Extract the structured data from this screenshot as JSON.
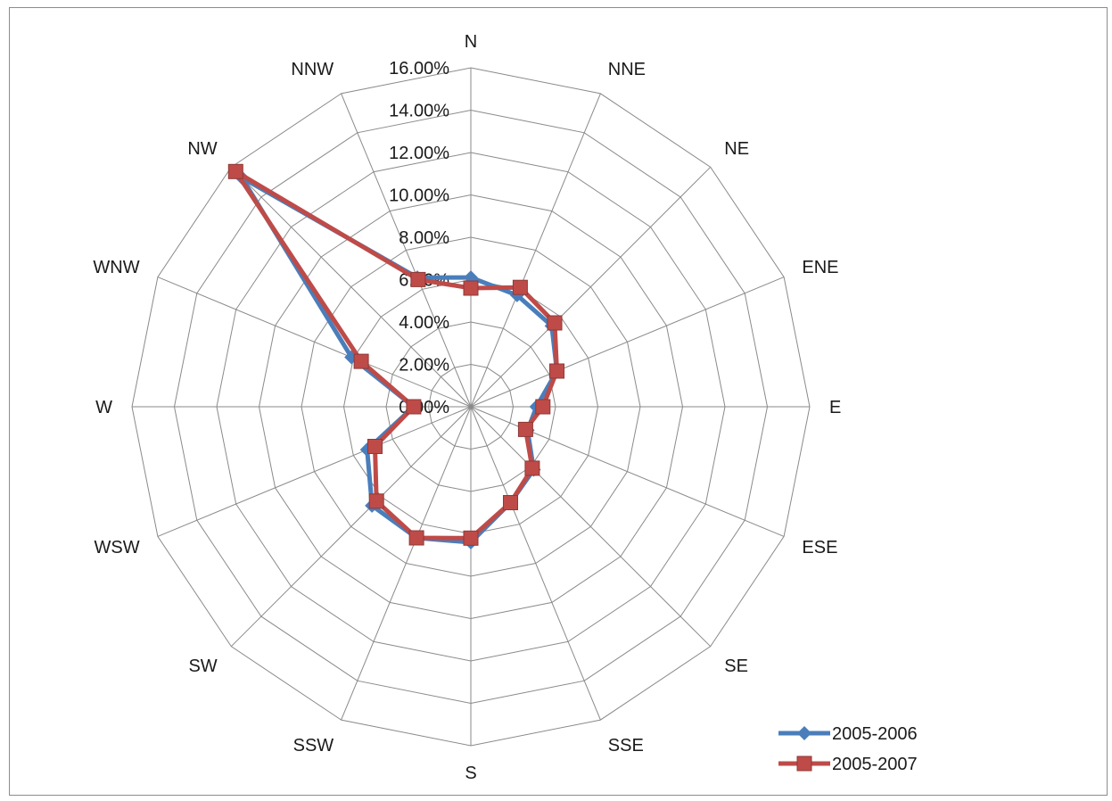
{
  "chart_data": {
    "type": "radar",
    "categories": [
      "N",
      "NNE",
      "NE",
      "ENE",
      "E",
      "ESE",
      "SE",
      "SSE",
      "S",
      "SSW",
      "SW",
      "WSW",
      "W",
      "WNW",
      "NW",
      "NNW"
    ],
    "series": [
      {
        "name": "2005-2006",
        "color": "#4a7ebb",
        "marker": "diamond",
        "values": [
          6.1,
          5.7,
          5.4,
          4.4,
          3.1,
          2.9,
          4.2,
          4.9,
          6.4,
          6.7,
          6.6,
          5.3,
          2.7,
          6.1,
          15.3,
          6.6
        ]
      },
      {
        "name": "2005-2007",
        "color": "#be4b48",
        "marker": "square",
        "values": [
          5.6,
          6.1,
          5.6,
          4.4,
          3.4,
          2.8,
          4.1,
          4.9,
          6.2,
          6.7,
          6.3,
          4.9,
          2.7,
          5.6,
          15.7,
          6.5
        ]
      }
    ],
    "rlim": [
      0,
      16
    ],
    "r_ticks": [
      "0.00%",
      "2.00%",
      "4.00%",
      "6.00%",
      "8.00%",
      "10.00%",
      "12.00%",
      "14.00%",
      "16.00%"
    ],
    "grid": true,
    "legend_position": "bottom-right"
  }
}
